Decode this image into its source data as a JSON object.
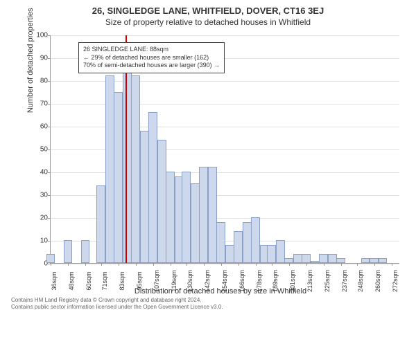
{
  "title": "26, SINGLEDGE LANE, WHITFIELD, DOVER, CT16 3EJ",
  "subtitle": "Size of property relative to detached houses in Whitfield",
  "chart": {
    "type": "histogram",
    "ylabel": "Number of detached properties",
    "xlabel": "Distribution of detached houses by size in Whitfield",
    "ylim": [
      0,
      100
    ],
    "ytick_step": 10,
    "yticks": [
      0,
      10,
      20,
      30,
      40,
      50,
      60,
      70,
      80,
      90,
      100
    ],
    "xticks": [
      "36sqm",
      "48sqm",
      "60sqm",
      "71sqm",
      "83sqm",
      "95sqm",
      "107sqm",
      "119sqm",
      "130sqm",
      "142sqm",
      "154sqm",
      "166sqm",
      "178sqm",
      "189sqm",
      "201sqm",
      "213sqm",
      "225sqm",
      "237sqm",
      "248sqm",
      "260sqm",
      "272sqm"
    ],
    "bins": [
      {
        "x": 36,
        "value": 4
      },
      {
        "x": 48,
        "value": 10
      },
      {
        "x": 60,
        "value": 10
      },
      {
        "x": 71,
        "value": 34
      },
      {
        "x": 77,
        "value": 82
      },
      {
        "x": 83,
        "value": 75
      },
      {
        "x": 89,
        "value": 85
      },
      {
        "x": 95,
        "value": 82
      },
      {
        "x": 101,
        "value": 58
      },
      {
        "x": 107,
        "value": 66
      },
      {
        "x": 113,
        "value": 54
      },
      {
        "x": 119,
        "value": 40
      },
      {
        "x": 125,
        "value": 38
      },
      {
        "x": 130,
        "value": 40
      },
      {
        "x": 136,
        "value": 35
      },
      {
        "x": 142,
        "value": 42
      },
      {
        "x": 148,
        "value": 42
      },
      {
        "x": 154,
        "value": 18
      },
      {
        "x": 160,
        "value": 8
      },
      {
        "x": 166,
        "value": 14
      },
      {
        "x": 172,
        "value": 18
      },
      {
        "x": 178,
        "value": 20
      },
      {
        "x": 184,
        "value": 8
      },
      {
        "x": 189,
        "value": 8
      },
      {
        "x": 195,
        "value": 10
      },
      {
        "x": 201,
        "value": 2
      },
      {
        "x": 207,
        "value": 4
      },
      {
        "x": 213,
        "value": 4
      },
      {
        "x": 219,
        "value": 1
      },
      {
        "x": 225,
        "value": 4
      },
      {
        "x": 231,
        "value": 4
      },
      {
        "x": 237,
        "value": 2
      },
      {
        "x": 248,
        "value": 0
      },
      {
        "x": 254,
        "value": 2
      },
      {
        "x": 260,
        "value": 2
      },
      {
        "x": 266,
        "value": 2
      },
      {
        "x": 272,
        "value": 0
      }
    ],
    "x_range": [
      36,
      278
    ],
    "bar_color": "#cdd8ec",
    "bar_border_color": "#8aa0c8",
    "grid_color": "#e0e0e0",
    "background_color": "#ffffff",
    "marker": {
      "x": 88,
      "color": "#cc0000"
    },
    "callout": {
      "line1": "26 SINGLEDGE LANE: 88sqm",
      "line2": "← 29% of detached houses are smaller (162)",
      "line3": "70% of semi-detached houses are larger (390) →",
      "border_color": "#cc0000",
      "fontsize": 9
    }
  },
  "footer": {
    "line1": "Contains HM Land Registry data © Crown copyright and database right 2024.",
    "line2": "Contains public sector information licensed under the Open Government Licence v3.0."
  }
}
